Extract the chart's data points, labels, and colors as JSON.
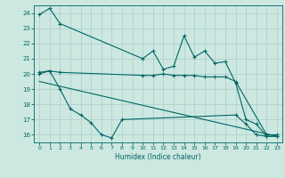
{
  "xlabel": "Humidex (Indice chaleur)",
  "background_color": "#cce8e0",
  "grid_color": "#aacccc",
  "line_color": "#006666",
  "xlim": [
    -0.5,
    23.5
  ],
  "ylim": [
    15.5,
    24.5
  ],
  "yticks": [
    16,
    17,
    18,
    19,
    20,
    21,
    22,
    23,
    24
  ],
  "xticks": [
    0,
    1,
    2,
    3,
    4,
    5,
    6,
    7,
    8,
    9,
    10,
    11,
    12,
    13,
    14,
    15,
    16,
    17,
    18,
    19,
    20,
    21,
    22,
    23
  ],
  "line1_x": [
    0,
    1,
    2,
    10,
    11,
    12,
    13,
    14,
    15,
    16,
    17,
    18,
    19,
    20,
    21,
    22,
    23
  ],
  "line1_y": [
    23.9,
    24.3,
    23.3,
    21.0,
    21.5,
    20.3,
    20.5,
    22.5,
    21.1,
    21.5,
    20.7,
    20.8,
    19.4,
    17.0,
    16.7,
    15.9,
    15.9
  ],
  "line2_x": [
    0,
    1,
    2,
    10,
    11,
    12,
    13,
    14,
    15,
    16,
    17,
    18,
    19,
    22,
    23
  ],
  "line2_y": [
    20.1,
    20.2,
    20.1,
    19.9,
    19.9,
    20.0,
    19.9,
    19.9,
    19.9,
    19.8,
    19.8,
    19.8,
    19.5,
    16.0,
    16.0
  ],
  "line3_x": [
    0,
    1,
    2,
    3,
    4,
    5,
    6,
    7,
    8,
    19,
    20,
    21,
    22,
    23
  ],
  "line3_y": [
    20.0,
    20.2,
    19.0,
    17.7,
    17.3,
    16.8,
    16.0,
    15.8,
    17.0,
    17.3,
    16.7,
    16.0,
    15.9,
    15.9
  ],
  "line4_x": [
    0,
    23
  ],
  "line4_y": [
    19.5,
    15.9
  ]
}
